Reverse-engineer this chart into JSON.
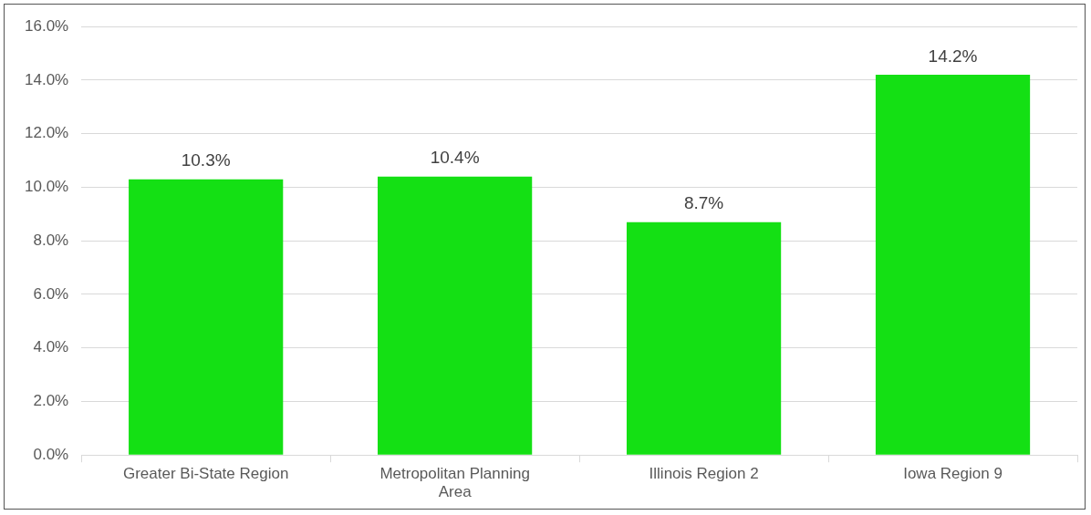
{
  "chart_data": {
    "type": "bar",
    "categories": [
      "Greater Bi-State Region",
      "Metropolitan Planning Area",
      "Illinois Region 2",
      "Iowa Region 9"
    ],
    "values": [
      10.3,
      10.4,
      8.7,
      14.2
    ],
    "value_labels": [
      "10.3%",
      "10.4%",
      "8.7%",
      "14.2%"
    ],
    "color": "#14e014",
    "ylim": [
      0,
      16
    ],
    "yticks": [
      {
        "value": 0,
        "label": "0.0%"
      },
      {
        "value": 2,
        "label": "2.0%"
      },
      {
        "value": 4,
        "label": "4.0%"
      },
      {
        "value": 6,
        "label": "6.0%"
      },
      {
        "value": 8,
        "label": "8.0%"
      },
      {
        "value": 10,
        "label": "10.0%"
      },
      {
        "value": 12,
        "label": "12.0%"
      },
      {
        "value": 14,
        "label": "14.0%"
      },
      {
        "value": 16,
        "label": "16.0%"
      }
    ],
    "grid": "y",
    "legend": false
  }
}
